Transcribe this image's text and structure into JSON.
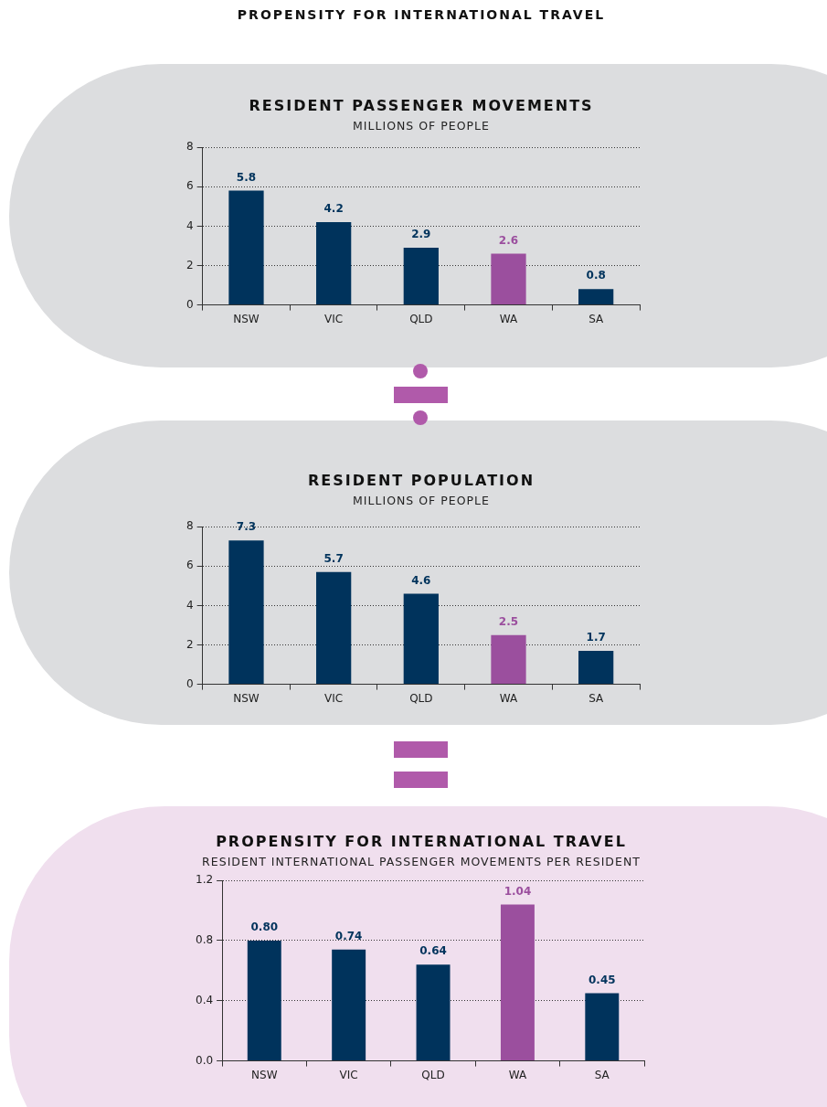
{
  "chart_data": [
    {
      "type": "bar",
      "title": "RESIDENT PASSENGER MOVEMENTS",
      "subtitle": "MILLIONS OF PEOPLE",
      "annotations": [
        "PROPENSITY FOR INTERNATIONAL TRAVEL"
      ],
      "categories": [
        "NSW",
        "VIC",
        "QLD",
        "WA",
        "SA"
      ],
      "values": [
        5.8,
        4.2,
        2.9,
        2.6,
        0.8
      ],
      "colors": [
        "#00335c",
        "#00335c",
        "#00335c",
        "#9b4f9e",
        "#00335c"
      ],
      "ylim": [
        0,
        8
      ],
      "yticks": [
        0,
        2,
        4,
        6,
        8
      ],
      "grid": "y",
      "data_labels": true
    },
    {
      "type": "bar",
      "title": "RESIDENT POPULATION",
      "subtitle": "MILLIONS OF PEOPLE",
      "categories": [
        "NSW",
        "VIC",
        "QLD",
        "WA",
        "SA"
      ],
      "values": [
        7.3,
        5.7,
        4.6,
        2.5,
        1.7
      ],
      "colors": [
        "#00335c",
        "#00335c",
        "#00335c",
        "#9b4f9e",
        "#00335c"
      ],
      "ylim": [
        0,
        8
      ],
      "yticks": [
        0,
        2,
        4,
        6,
        8
      ],
      "grid": "y",
      "data_labels": true
    },
    {
      "type": "bar",
      "title": "PROPENSITY FOR INTERNATIONAL TRAVEL",
      "subtitle": "RESIDENT INTERNATIONAL PASSENGER MOVEMENTS PER RESIDENT",
      "categories": [
        "NSW",
        "VIC",
        "QLD",
        "WA",
        "SA"
      ],
      "values": [
        0.8,
        0.74,
        0.64,
        1.04,
        0.45
      ],
      "value_labels": [
        "0.80",
        "0.74",
        "0.64",
        "1.04",
        "0.45"
      ],
      "colors": [
        "#00335c",
        "#00335c",
        "#00335c",
        "#9b4f9e",
        "#00335c"
      ],
      "ylim": [
        0,
        1.2
      ],
      "yticks": [
        {
          "value": 0,
          "label": "0.0"
        },
        {
          "value": 0.4,
          "label": "0.4"
        },
        {
          "value": 0.8,
          "label": "0.8"
        },
        {
          "value": 1.2,
          "label": "1.2"
        }
      ],
      "grid": "y"
    }
  ]
}
